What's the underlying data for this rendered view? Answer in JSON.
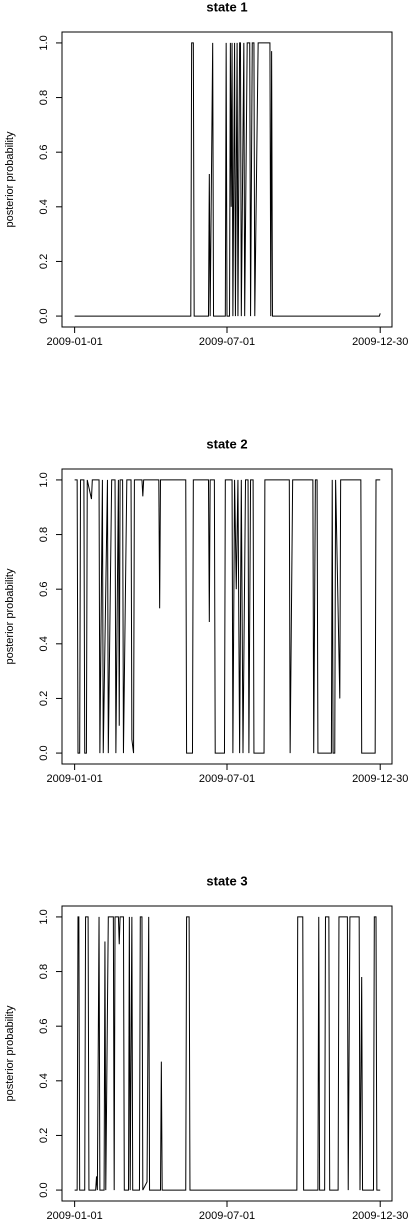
{
  "chart_data": [
    {
      "type": "line",
      "title": "state 1",
      "y_label": "posterior probability",
      "x": [
        "2009-01-01",
        "2009-05-19",
        "2009-05-20",
        "2009-05-22",
        "2009-05-23",
        "2009-06-09",
        "2009-06-10",
        "2009-06-11",
        "2009-06-14",
        "2009-06-15",
        "2009-06-29",
        "2009-06-30",
        "2009-07-01",
        "2009-07-04",
        "2009-07-05",
        "2009-07-06",
        "2009-07-07",
        "2009-07-08",
        "2009-07-10",
        "2009-07-11",
        "2009-07-13",
        "2009-07-14",
        "2009-07-16",
        "2009-07-17",
        "2009-07-18",
        "2009-07-21",
        "2009-07-22",
        "2009-07-25",
        "2009-07-28",
        "2009-07-29",
        "2009-07-31",
        "2009-08-02",
        "2009-08-03",
        "2009-08-07",
        "2009-08-21",
        "2009-08-22",
        "2009-08-23",
        "2009-08-24",
        "2009-12-29",
        "2009-12-30"
      ],
      "values": [
        0,
        0,
        1,
        1,
        0,
        0,
        0.52,
        0,
        1,
        0,
        0,
        1,
        0,
        0,
        1,
        0.4,
        1,
        0,
        1,
        0,
        1,
        0,
        1,
        1,
        0,
        1,
        0,
        1,
        1,
        0,
        1,
        1,
        0,
        1,
        1,
        0,
        0.97,
        0,
        0,
        0.01
      ],
      "color": "#000000",
      "xlim": [
        "2008-12-17",
        "2010-01-13"
      ],
      "xticks": [
        "2009-01-01",
        "2009-07-01",
        "2009-12-30"
      ],
      "ylim": [
        -0.04,
        1.04
      ],
      "yticks": [
        {
          "value": 0,
          "label": "0.0"
        },
        {
          "value": 0.2,
          "label": "0.2"
        },
        {
          "value": 0.4,
          "label": "0.4"
        },
        {
          "value": 0.6,
          "label": "0.6"
        },
        {
          "value": 0.8,
          "label": "0.8"
        },
        {
          "value": 1,
          "label": "1.0"
        }
      ]
    },
    {
      "type": "line",
      "title": "state 2",
      "y_label": "posterior probability",
      "x": [
        "2009-01-01",
        "2009-01-04",
        "2009-01-05",
        "2009-01-07",
        "2009-01-08",
        "2009-01-12",
        "2009-01-13",
        "2009-01-15",
        "2009-01-16",
        "2009-01-21",
        "2009-01-22",
        "2009-01-30",
        "2009-01-31",
        "2009-02-03",
        "2009-02-04",
        "2009-02-09",
        "2009-02-10",
        "2009-02-14",
        "2009-02-18",
        "2009-02-19",
        "2009-02-22",
        "2009-02-23",
        "2009-02-24",
        "2009-02-27",
        "2009-02-28",
        "2009-03-04",
        "2009-03-09",
        "2009-03-10",
        "2009-03-12",
        "2009-03-13",
        "2009-03-22",
        "2009-03-23",
        "2009-03-24",
        "2009-04-11",
        "2009-04-12",
        "2009-04-13",
        "2009-05-13",
        "2009-05-14",
        "2009-05-21",
        "2009-05-22",
        "2009-06-09",
        "2009-06-10",
        "2009-06-11",
        "2009-06-16",
        "2009-06-17",
        "2009-06-28",
        "2009-06-29",
        "2009-07-07",
        "2009-07-08",
        "2009-07-10",
        "2009-07-12",
        "2009-07-14",
        "2009-07-16",
        "2009-07-18",
        "2009-07-20",
        "2009-07-23",
        "2009-07-26",
        "2009-07-27",
        "2009-07-29",
        "2009-08-01",
        "2009-08-02",
        "2009-08-14",
        "2009-08-15",
        "2009-09-13",
        "2009-09-14",
        "2009-09-17",
        "2009-10-11",
        "2009-10-12",
        "2009-10-14",
        "2009-10-16",
        "2009-10-17",
        "2009-11-02",
        "2009-11-03",
        "2009-11-04",
        "2009-11-06",
        "2009-11-07",
        "2009-11-12",
        "2009-11-13",
        "2009-12-07",
        "2009-12-08",
        "2009-12-24",
        "2009-12-25",
        "2009-12-30"
      ],
      "values": [
        1,
        1,
        0,
        0,
        1,
        1,
        0,
        0,
        1,
        0.93,
        1,
        1,
        0,
        1,
        0,
        1,
        0,
        1,
        1,
        0,
        1,
        0.1,
        1,
        1,
        0,
        1,
        1,
        0.05,
        0,
        1,
        1,
        0.94,
        1,
        1,
        0.53,
        1,
        1,
        0,
        0,
        1,
        1,
        0.48,
        1,
        1,
        0,
        0,
        1,
        1,
        0,
        1,
        0.6,
        1,
        0,
        1,
        0,
        1,
        1,
        0,
        1,
        1,
        0,
        0,
        1,
        1,
        0,
        1,
        1,
        0,
        1,
        1,
        0,
        0,
        1,
        0,
        0,
        1,
        0.2,
        1,
        1,
        0,
        0,
        1,
        1
      ],
      "color": "#000000",
      "xlim": [
        "2008-12-17",
        "2010-01-13"
      ],
      "xticks": [
        "2009-01-01",
        "2009-07-01",
        "2009-12-30"
      ],
      "ylim": [
        -0.04,
        1.04
      ],
      "yticks": [
        {
          "value": 0,
          "label": "0.0"
        },
        {
          "value": 0.2,
          "label": "0.2"
        },
        {
          "value": 0.4,
          "label": "0.4"
        },
        {
          "value": 0.6,
          "label": "0.6"
        },
        {
          "value": 0.8,
          "label": "0.8"
        },
        {
          "value": 1,
          "label": "1.0"
        }
      ]
    },
    {
      "type": "line",
      "title": "state 3",
      "y_label": "posterior probability",
      "x": [
        "2009-01-01",
        "2009-01-04",
        "2009-01-05",
        "2009-01-06",
        "2009-01-07",
        "2009-01-13",
        "2009-01-14",
        "2009-01-17",
        "2009-01-18",
        "2009-01-26",
        "2009-01-27",
        "2009-01-28",
        "2009-01-30",
        "2009-01-31",
        "2009-02-05",
        "2009-02-06",
        "2009-02-07",
        "2009-02-10",
        "2009-02-16",
        "2009-02-17",
        "2009-02-18",
        "2009-02-22",
        "2009-02-23",
        "2009-02-24",
        "2009-02-28",
        "2009-03-01",
        "2009-03-06",
        "2009-03-07",
        "2009-03-08",
        "2009-03-10",
        "2009-03-11",
        "2009-03-19",
        "2009-03-20",
        "2009-03-22",
        "2009-03-23",
        "2009-03-28",
        "2009-03-30",
        "2009-03-31",
        "2009-04-13",
        "2009-04-14",
        "2009-04-15",
        "2009-05-13",
        "2009-05-14",
        "2009-05-17",
        "2009-05-18",
        "2009-09-22",
        "2009-09-23",
        "2009-09-29",
        "2009-09-30",
        "2009-10-17",
        "2009-10-18",
        "2009-10-19",
        "2009-10-25",
        "2009-10-26",
        "2009-10-30",
        "2009-10-31",
        "2009-11-10",
        "2009-11-11",
        "2009-11-21",
        "2009-11-22",
        "2009-11-24",
        "2009-12-05",
        "2009-12-06",
        "2009-12-08",
        "2009-12-09",
        "2009-12-22",
        "2009-12-23",
        "2009-12-25",
        "2009-12-26",
        "2009-12-30"
      ],
      "values": [
        0,
        0,
        1,
        1,
        0,
        0,
        1,
        1,
        0,
        0,
        0.05,
        0,
        1,
        0,
        0,
        0.91,
        0,
        1,
        1,
        0,
        1,
        1,
        0.9,
        1,
        1,
        0,
        0,
        1,
        0,
        1,
        0,
        0,
        1,
        1,
        0,
        0.03,
        1,
        0,
        0,
        0.47,
        0,
        0,
        1,
        1,
        0,
        0,
        1,
        1,
        0,
        0,
        1,
        0,
        0,
        1,
        1,
        0,
        0,
        1,
        1,
        0,
        1,
        1,
        0,
        0.78,
        0,
        0,
        1,
        1,
        0,
        0
      ],
      "color": "#000000",
      "xlim": [
        "2008-12-17",
        "2010-01-13"
      ],
      "xticks": [
        "2009-01-01",
        "2009-07-01",
        "2009-12-30"
      ],
      "ylim": [
        -0.04,
        1.04
      ],
      "yticks": [
        {
          "value": 0,
          "label": "0.0"
        },
        {
          "value": 0.2,
          "label": "0.2"
        },
        {
          "value": 0.4,
          "label": "0.4"
        },
        {
          "value": 0.6,
          "label": "0.6"
        },
        {
          "value": 0.8,
          "label": "0.8"
        },
        {
          "value": 1,
          "label": "1.0"
        }
      ]
    }
  ]
}
